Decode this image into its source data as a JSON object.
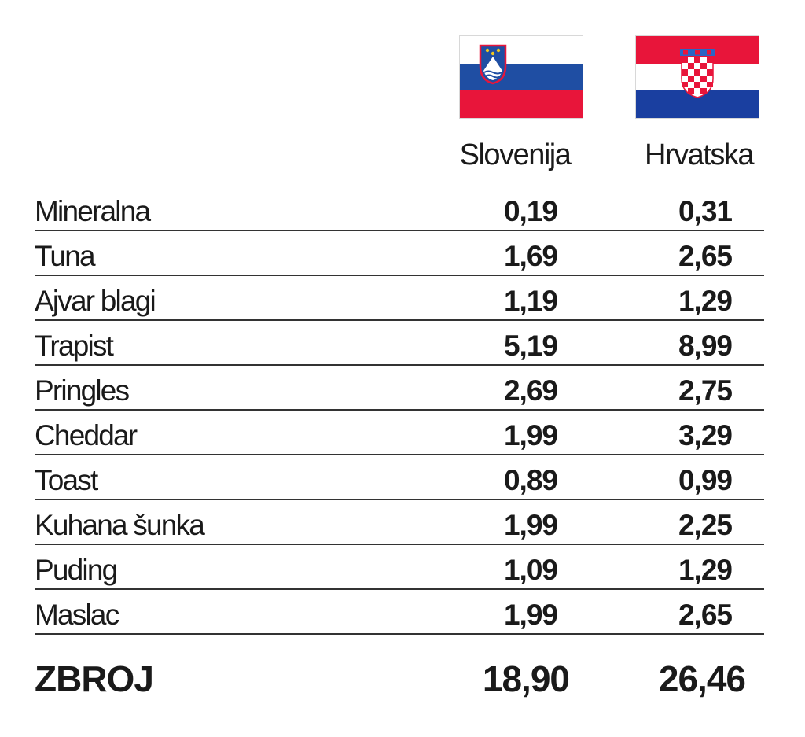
{
  "columns": {
    "slovenia": {
      "label": "Slovenija",
      "flag_icon": "slovenia-flag-icon",
      "flag_colors": [
        "#ffffff",
        "#1f4ea3",
        "#e8153a"
      ]
    },
    "croatia": {
      "label": "Hrvatska",
      "flag_icon": "croatia-flag-icon",
      "flag_colors": [
        "#e8153a",
        "#ffffff",
        "#1a3fa0"
      ]
    }
  },
  "rows": [
    {
      "name": "Mineralna",
      "slovenia": "0,19",
      "croatia": "0,31"
    },
    {
      "name": "Tuna",
      "slovenia": "1,69",
      "croatia": "2,65"
    },
    {
      "name": "Ajvar blagi",
      "slovenia": "1,19",
      "croatia": "1,29"
    },
    {
      "name": "Trapist",
      "slovenia": "5,19",
      "croatia": "8,99"
    },
    {
      "name": "Pringles",
      "slovenia": "2,69",
      "croatia": "2,75"
    },
    {
      "name": "Cheddar",
      "slovenia": "1,99",
      "croatia": "3,29"
    },
    {
      "name": "Toast",
      "slovenia": "0,89",
      "croatia": "0,99"
    },
    {
      "name": "Kuhana šunka",
      "slovenia": "1,99",
      "croatia": "2,25"
    },
    {
      "name": "Puding",
      "slovenia": "1,09",
      "croatia": "1,29"
    },
    {
      "name": "Maslac",
      "slovenia": "1,99",
      "croatia": "2,65"
    }
  ],
  "total": {
    "label": "ZBROJ",
    "slovenia": "18,90",
    "croatia": "26,46"
  },
  "chart_data": {
    "type": "table",
    "columns": [
      "Slovenija",
      "Hrvatska"
    ],
    "categories": [
      "Mineralna",
      "Tuna",
      "Ajvar blagi",
      "Trapist",
      "Pringles",
      "Cheddar",
      "Toast",
      "Kuhana šunka",
      "Puding",
      "Maslac"
    ],
    "series": [
      {
        "name": "Slovenija",
        "values": [
          0.19,
          1.69,
          1.19,
          5.19,
          2.69,
          1.99,
          0.89,
          1.99,
          1.09,
          1.99
        ]
      },
      {
        "name": "Hrvatska",
        "values": [
          0.31,
          2.65,
          1.29,
          8.99,
          2.75,
          3.29,
          0.99,
          2.25,
          1.29,
          2.65
        ]
      }
    ],
    "totals": {
      "Slovenija": 18.9,
      "Hrvatska": 26.46
    }
  }
}
